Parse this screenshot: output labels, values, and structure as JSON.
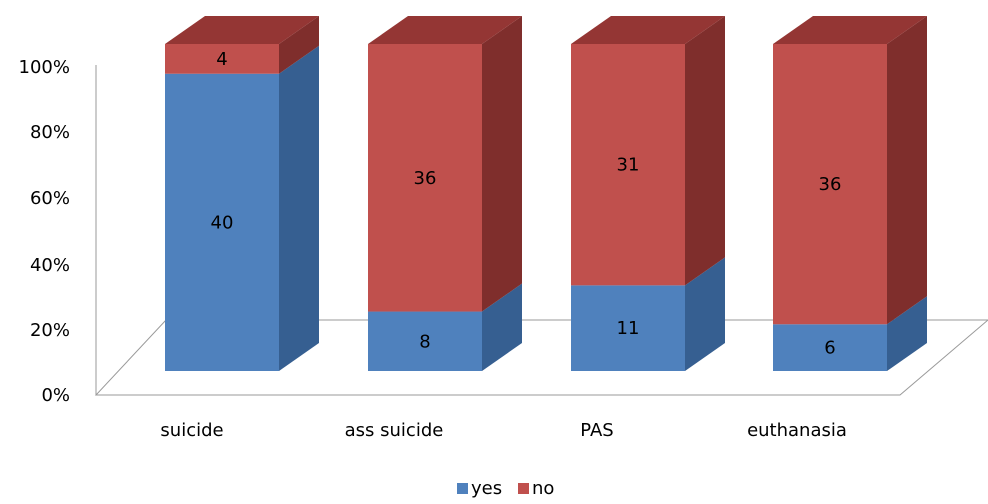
{
  "chart_data": {
    "type": "bar",
    "stacked": true,
    "percent": true,
    "three_d": true,
    "categories": [
      "suicide",
      "ass suicide",
      "PAS",
      "euthanasia"
    ],
    "series": [
      {
        "name": "yes",
        "values": [
          40,
          8,
          11,
          6
        ],
        "color": "#4F81BD",
        "side_color": "#365F91",
        "top_color": "#5B8CC9"
      },
      {
        "name": "no",
        "values": [
          4,
          36,
          31,
          36
        ],
        "color": "#C0504D",
        "side_color": "#7F2E2C",
        "top_color": "#943634"
      }
    ],
    "ylim": [
      0,
      100
    ],
    "y_ticks": [
      "0%",
      "20%",
      "40%",
      "60%",
      "80%",
      "100%"
    ],
    "legend_position": "bottom",
    "grid": false
  }
}
